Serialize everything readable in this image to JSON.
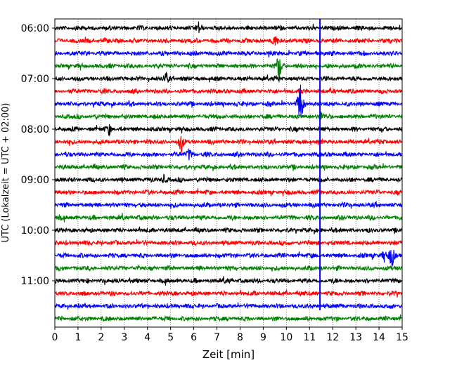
{
  "chart_data": {
    "type": "line",
    "title": "",
    "xlabel": "Zeit  [min]",
    "ylabel": "UTC (Lokalzeit = UTC + 02:00)",
    "xlim": [
      0,
      15
    ],
    "x_ticks": [
      "0",
      "1",
      "2",
      "3",
      "4",
      "5",
      "6",
      "7",
      "8",
      "9",
      "10",
      "11",
      "12",
      "13",
      "14",
      "15"
    ],
    "y_tick_labels": [
      "06:00",
      "07:00",
      "08:00",
      "09:00",
      "10:00",
      "11:00"
    ],
    "trace_colors": [
      "#000000",
      "#ff0000",
      "#0000ff",
      "#008000"
    ],
    "grid": "vertical dotted",
    "traces": [
      {
        "start": "06:00",
        "color": "#000000"
      },
      {
        "start": "06:15",
        "color": "#ff0000"
      },
      {
        "start": "06:30",
        "color": "#0000ff"
      },
      {
        "start": "06:45",
        "color": "#008000"
      },
      {
        "start": "07:00",
        "color": "#000000"
      },
      {
        "start": "07:15",
        "color": "#ff0000"
      },
      {
        "start": "07:30",
        "color": "#0000ff"
      },
      {
        "start": "07:45",
        "color": "#008000"
      },
      {
        "start": "08:00",
        "color": "#000000"
      },
      {
        "start": "08:15",
        "color": "#ff0000"
      },
      {
        "start": "08:30",
        "color": "#0000ff"
      },
      {
        "start": "08:45",
        "color": "#008000"
      },
      {
        "start": "09:00",
        "color": "#000000"
      },
      {
        "start": "09:15",
        "color": "#ff0000"
      },
      {
        "start": "09:30",
        "color": "#0000ff"
      },
      {
        "start": "09:45",
        "color": "#008000"
      },
      {
        "start": "10:00",
        "color": "#000000"
      },
      {
        "start": "10:15",
        "color": "#ff0000"
      },
      {
        "start": "10:30",
        "color": "#0000ff"
      },
      {
        "start": "10:45",
        "color": "#008000"
      },
      {
        "start": "11:00",
        "color": "#000000"
      },
      {
        "start": "11:15",
        "color": "#ff0000"
      },
      {
        "start": "11:30",
        "color": "#0000ff"
      },
      {
        "start": "11:45",
        "color": "#008000"
      }
    ],
    "events": [
      {
        "trace": 1,
        "t": 9.5,
        "amp": 0.5
      },
      {
        "trace": 3,
        "t": 9.68,
        "amp": 1.4
      },
      {
        "trace": 6,
        "t": 10.6,
        "amp": 2.2
      },
      {
        "trace": 9,
        "t": 5.45,
        "amp": 0.9
      },
      {
        "trace": 10,
        "t": 5.8,
        "amp": 0.5
      },
      {
        "trace": 18,
        "t": 14.2,
        "amp": 0.5
      },
      {
        "trace": 18,
        "t": 14.55,
        "amp": 1.1
      },
      {
        "trace": 0,
        "t": 6.2,
        "amp": 0.45
      },
      {
        "trace": 4,
        "t": 4.8,
        "amp": 0.5
      },
      {
        "trace": 8,
        "t": 2.35,
        "amp": 0.5
      },
      {
        "trace": 7,
        "t": 11.5,
        "amp": 0.35
      },
      {
        "trace": 12,
        "t": 4.7,
        "amp": 0.35
      }
    ],
    "spikes": [
      {
        "t": 11.45,
        "color": "#0000ff",
        "from_trace": 0,
        "to_trace": 22
      }
    ]
  }
}
